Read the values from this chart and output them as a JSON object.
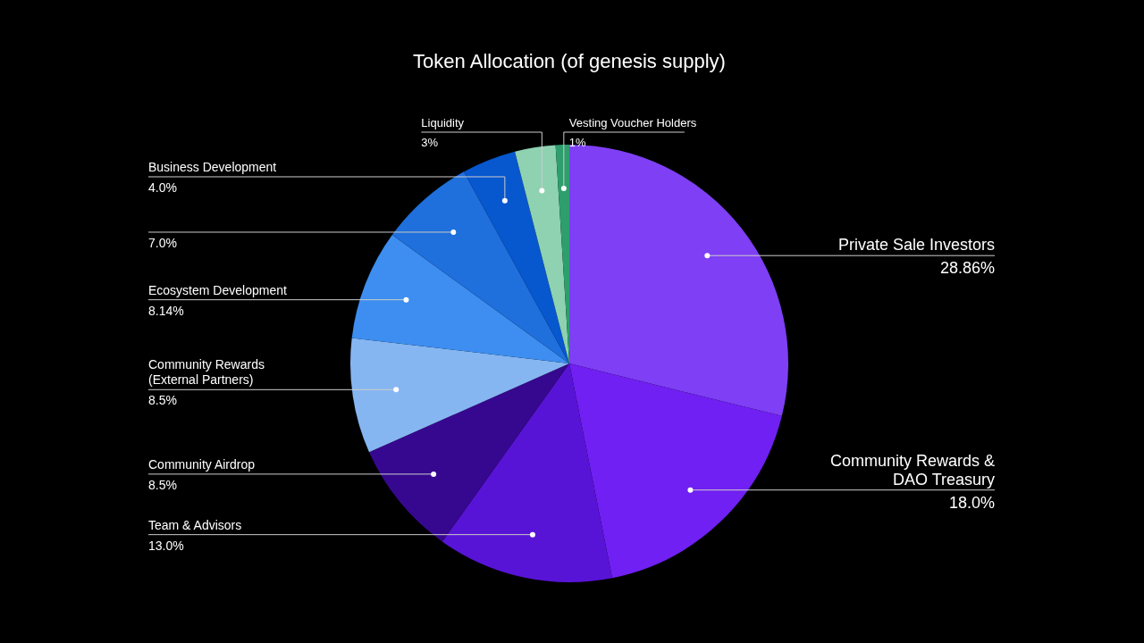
{
  "chart_data": {
    "type": "pie",
    "title": "Token Allocation (of genesis supply)",
    "categories": [
      "Private Sale Investors",
      "Community Rewards & DAO Treasury",
      "Team & Advisors",
      "Community Airdrop",
      "Community Rewards (External Partners)",
      "Ecosystem Development",
      null,
      "Business Development",
      "Liquidity",
      "Vesting Voucher Holders"
    ],
    "values": [
      28.86,
      18.0,
      13.0,
      8.5,
      8.5,
      8.14,
      7.0,
      4.0,
      3,
      1
    ],
    "colors": [
      "#7f3ff5",
      "#7020f2",
      "#5814d6",
      "#36088f",
      "#86b6f2",
      "#3d8ef0",
      "#1f6fdc",
      "#0757cf",
      "#8ed2b2",
      "#2e9e6e"
    ],
    "value_labels": [
      "28.86%",
      "18.0%",
      "13.0%",
      "8.5%",
      "8.5%",
      "8.14%",
      "7.0%",
      "4.0%",
      "3%",
      "1%"
    ]
  }
}
